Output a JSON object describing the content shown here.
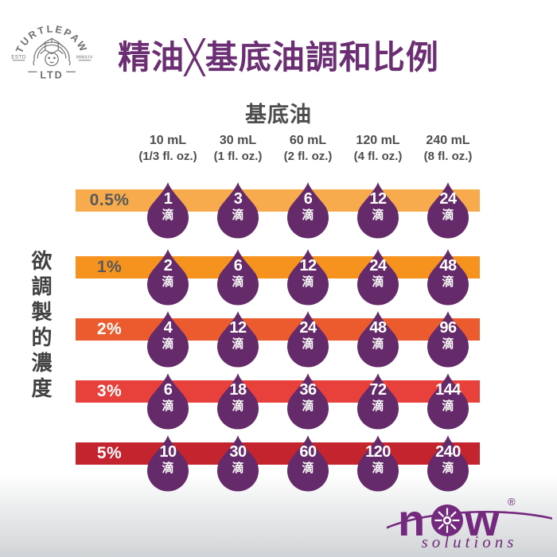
{
  "logo_turtlepaw": {
    "arc_text": "TURTLEPAW",
    "estd": "ESTD",
    "year": "MMXIV",
    "ltd": "LTD"
  },
  "title": "精油╳基底油調和比例",
  "table": {
    "column_group_label": "基底油",
    "row_group_label": "欲調製的濃度",
    "drop_unit": "滴",
    "drop_color": "#652A69",
    "columns": [
      {
        "volume": "10 mL",
        "fl_oz": "(1/3 fl. oz.)"
      },
      {
        "volume": "30 mL",
        "fl_oz": "(1 fl. oz.)"
      },
      {
        "volume": "60 mL",
        "fl_oz": "(2 fl. oz.)"
      },
      {
        "volume": "120 mL",
        "fl_oz": "(4 fl. oz.)"
      },
      {
        "volume": "240 mL",
        "fl_oz": "(8 fl. oz.)"
      }
    ],
    "rows": [
      {
        "percent": "0.5%",
        "bar_color": "#F7AB4C",
        "label_color": "#58595B",
        "drops": [
          1,
          3,
          6,
          12,
          24
        ]
      },
      {
        "percent": "1%",
        "bar_color": "#F6921E",
        "label_color": "#58595B",
        "drops": [
          2,
          6,
          12,
          24,
          48
        ]
      },
      {
        "percent": "2%",
        "bar_color": "#EB5B2E",
        "label_color": "#FFFFFF",
        "drops": [
          4,
          12,
          24,
          48,
          96
        ]
      },
      {
        "percent": "3%",
        "bar_color": "#E8413C",
        "label_color": "#FFFFFF",
        "drops": [
          6,
          18,
          36,
          72,
          144
        ]
      },
      {
        "percent": "5%",
        "bar_color": "#C4242E",
        "label_color": "#FFFFFF",
        "drops": [
          10,
          30,
          60,
          120,
          240
        ]
      }
    ]
  },
  "brand_now": {
    "name": "now",
    "registered": "®",
    "tagline": "solutions",
    "color": "#732A7E"
  },
  "colors": {
    "title_purple": "#6C2E72",
    "drop_purple": "#652A69",
    "text_dark": "#4D4D4F",
    "logo_gray": "#77787B",
    "bg_bottom": "#D3D5D7"
  },
  "chart_data": {
    "type": "table",
    "title": "精油╳基底油調和比例",
    "columns_header": "基底油",
    "columns": [
      "10 mL (1/3 fl. oz.)",
      "30 mL (1 fl. oz.)",
      "60 mL (2 fl. oz.)",
      "120 mL (4 fl. oz.)",
      "240 mL (8 fl. oz.)"
    ],
    "rows_header": "欲調製的濃度",
    "rows": [
      "0.5%",
      "1%",
      "2%",
      "3%",
      "5%"
    ],
    "unit": "滴",
    "values": [
      [
        1,
        3,
        6,
        12,
        24
      ],
      [
        2,
        6,
        12,
        24,
        48
      ],
      [
        4,
        12,
        24,
        48,
        96
      ],
      [
        6,
        18,
        36,
        72,
        144
      ],
      [
        10,
        30,
        60,
        120,
        240
      ]
    ]
  }
}
